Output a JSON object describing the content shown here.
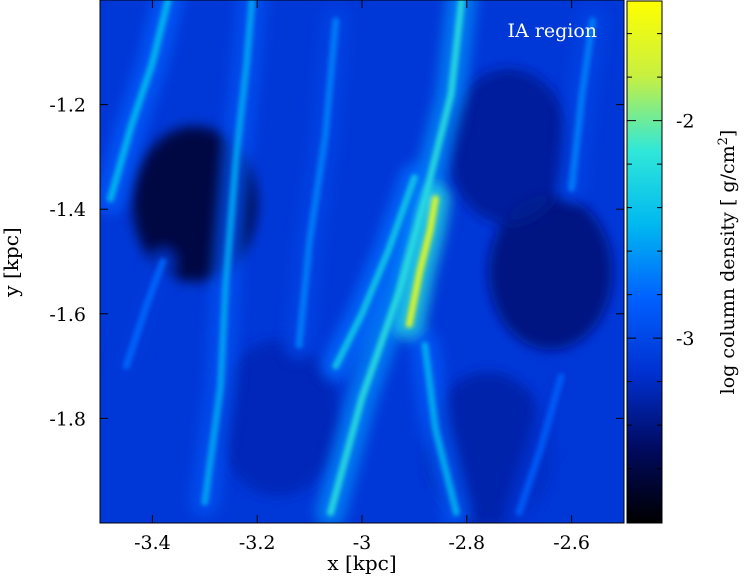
{
  "chart_data": {
    "type": "heatmap",
    "annotation": "IA region",
    "xlabel": "x [kpc]",
    "ylabel": "y [kpc]",
    "colorbar_label": "log column density [ g/cm",
    "colorbar_label_sup": "2",
    "colorbar_label_close": "]",
    "xlim": [
      -3.5,
      -2.5
    ],
    "ylim": [
      -2.0,
      -1.0
    ],
    "xticks": [
      {
        "value": -3.4,
        "label": "-3.4"
      },
      {
        "value": -3.2,
        "label": "-3.2"
      },
      {
        "value": -3.0,
        "label": "-3"
      },
      {
        "value": -2.8,
        "label": "-2.8"
      },
      {
        "value": -2.6,
        "label": "-2.6"
      }
    ],
    "yticks": [
      {
        "value": -1.2,
        "label": "-1.2"
      },
      {
        "value": -1.4,
        "label": "-1.4"
      },
      {
        "value": -1.6,
        "label": "-1.6"
      },
      {
        "value": -1.8,
        "label": "-1.8"
      }
    ],
    "colorbar_range": [
      -3.85,
      -1.45
    ],
    "colorbar_ticks": [
      {
        "value": -2,
        "label": "-2"
      },
      {
        "value": -3,
        "label": "-3"
      }
    ],
    "colormap": [
      "#000000",
      "#000a60",
      "#0030d0",
      "#0060ff",
      "#00b8f0",
      "#30e8d8",
      "#c8f040",
      "#ffff00"
    ],
    "filaments": [
      {
        "points": [
          [
            -3.06,
            -1.98
          ],
          [
            -3.0,
            -1.76
          ],
          [
            -2.93,
            -1.56
          ],
          [
            -2.88,
            -1.38
          ],
          [
            -2.83,
            -1.18
          ],
          [
            -2.81,
            -1.0
          ]
        ],
        "peak": -2.2
      },
      {
        "points": [
          [
            -2.91,
            -1.62
          ],
          [
            -2.89,
            -1.52
          ],
          [
            -2.87,
            -1.44
          ],
          [
            -2.86,
            -1.38
          ]
        ],
        "peak": -1.6
      },
      {
        "points": [
          [
            -3.48,
            -1.38
          ],
          [
            -3.44,
            -1.24
          ],
          [
            -3.4,
            -1.12
          ],
          [
            -3.37,
            -1.0
          ]
        ],
        "peak": -2.45
      },
      {
        "points": [
          [
            -3.3,
            -1.96
          ],
          [
            -3.27,
            -1.74
          ],
          [
            -3.26,
            -1.54
          ],
          [
            -3.24,
            -1.3
          ],
          [
            -3.22,
            -1.12
          ],
          [
            -3.21,
            -1.0
          ]
        ],
        "peak": -2.55
      },
      {
        "points": [
          [
            -3.12,
            -1.66
          ],
          [
            -3.1,
            -1.46
          ],
          [
            -3.07,
            -1.26
          ],
          [
            -3.05,
            -1.04
          ]
        ],
        "peak": -2.7
      },
      {
        "points": [
          [
            -2.82,
            -1.98
          ],
          [
            -2.86,
            -1.82
          ],
          [
            -2.88,
            -1.66
          ]
        ],
        "peak": -2.5
      },
      {
        "points": [
          [
            -2.6,
            -1.36
          ],
          [
            -2.58,
            -1.18
          ],
          [
            -2.56,
            -1.04
          ]
        ],
        "peak": -2.7
      },
      {
        "points": [
          [
            -3.05,
            -1.7
          ],
          [
            -3.0,
            -1.6
          ],
          [
            -2.95,
            -1.48
          ],
          [
            -2.9,
            -1.34
          ]
        ],
        "peak": -2.35
      },
      {
        "points": [
          [
            -3.45,
            -1.7
          ],
          [
            -3.41,
            -1.58
          ],
          [
            -3.38,
            -1.5
          ]
        ],
        "peak": -2.8
      },
      {
        "points": [
          [
            -2.7,
            -1.98
          ],
          [
            -2.66,
            -1.86
          ],
          [
            -2.62,
            -1.72
          ]
        ],
        "peak": -2.85
      }
    ],
    "voids": [
      {
        "x": -3.32,
        "y": -1.39,
        "value": -3.7
      },
      {
        "x": -2.64,
        "y": -1.52,
        "value": -3.45
      },
      {
        "x": -2.72,
        "y": -1.28,
        "value": -3.35
      },
      {
        "x": -3.16,
        "y": -1.8,
        "value": -3.25
      },
      {
        "x": -2.76,
        "y": -1.86,
        "value": -3.3
      }
    ]
  }
}
